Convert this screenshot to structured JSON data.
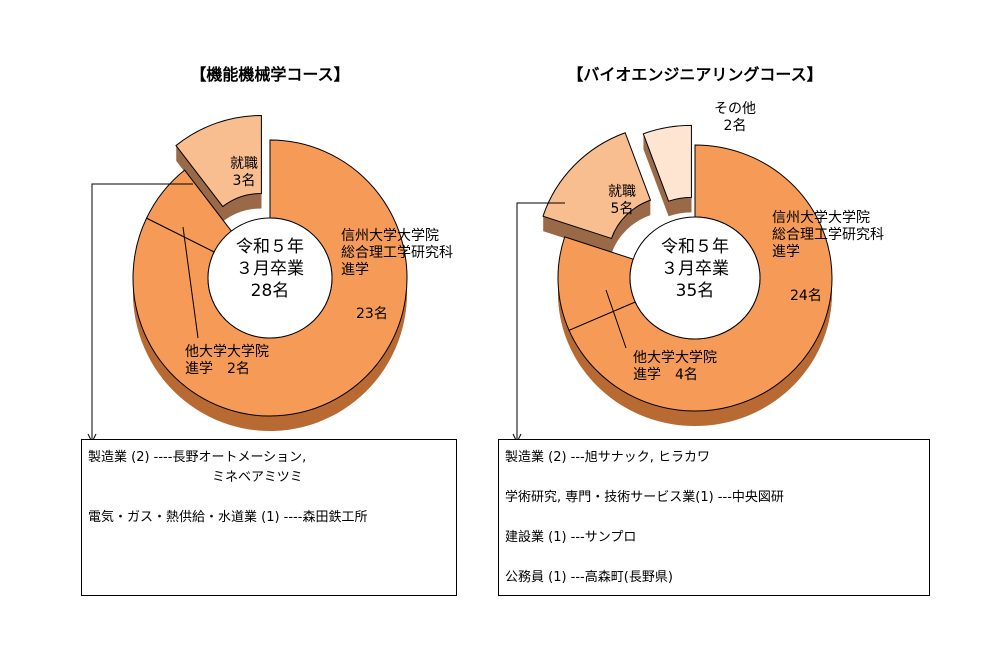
{
  "colors": {
    "main": "#F59A57",
    "main_side": "#B86A33",
    "employ": "#F8BE90",
    "employ_side": "#9A6A48",
    "other": "#FDE5D2",
    "edge": "#000000"
  },
  "chart_data": [
    {
      "type": "pie",
      "title": "【機能機械学コース】",
      "center_text": [
        "令和５年",
        "３月卒業",
        "28名"
      ],
      "slices": [
        {
          "id": "shinshu",
          "name_lines": [
            "信州大学大学院",
            "総合理工学研究科",
            "進学"
          ],
          "value_label": "23名",
          "value": 23
        },
        {
          "id": "other-grad",
          "name_lines": [
            "他大学大学院",
            "進学　2名"
          ],
          "value": 2
        },
        {
          "id": "employ",
          "name_lines": [
            "就職",
            "3名"
          ],
          "value": 3
        }
      ],
      "details": [
        {
          "text": "製造業 (2) ----長野オートメーション,"
        },
        {
          "text": "                              ミネベアミツミ"
        },
        {
          "gap": true
        },
        {
          "text": "電気・ガス・熱供給・水道業 (1) ----森田鉄工所"
        }
      ]
    },
    {
      "type": "pie",
      "title": "【バイオエンジニアリングコース】",
      "center_text": [
        "令和５年",
        "３月卒業",
        "35名"
      ],
      "slices": [
        {
          "id": "shinshu",
          "name_lines": [
            "信州大学大学院",
            "総合理工学研究科",
            "進学"
          ],
          "value_label": "24名",
          "value": 24
        },
        {
          "id": "other-grad",
          "name_lines": [
            "他大学大学院",
            "進学　4名"
          ],
          "value": 4
        },
        {
          "id": "employ",
          "name_lines": [
            "就職",
            "5名"
          ],
          "value": 5
        },
        {
          "id": "others",
          "name_lines": [
            "その他",
            "2名"
          ],
          "value": 2
        }
      ],
      "details": [
        {
          "text": "製造業 (2) ---旭サナック, ヒラカワ"
        },
        {
          "gap": true
        },
        {
          "text": "学術研究, 専門・技術サービス業(1) ---中央図研"
        },
        {
          "gap": true
        },
        {
          "text": "建設業 (1) ---サンプロ"
        },
        {
          "gap": true
        },
        {
          "text": "公務員 (1) ---高森町(長野県)"
        }
      ]
    }
  ]
}
